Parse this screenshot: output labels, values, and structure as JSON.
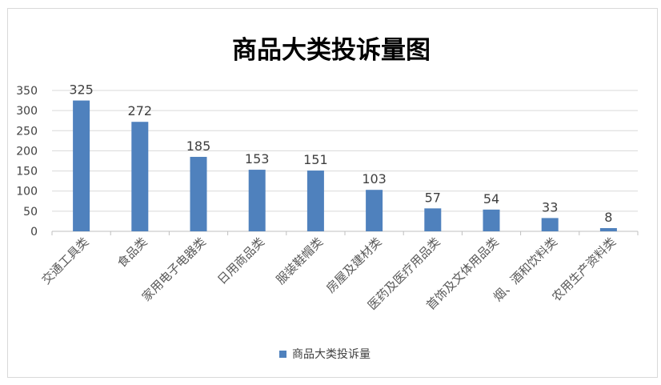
{
  "chart_data": {
    "type": "bar",
    "title": "商品大类投诉量图",
    "categories": [
      "交通工具类",
      "食品类",
      "家用电子电器类",
      "日用商品类",
      "服装鞋帽类",
      "房屋及建材类",
      "医药及医疗用品类",
      "首饰及文体用品类",
      "烟、酒和饮料类",
      "农用生产资料类"
    ],
    "series": [
      {
        "name": "商品大类投诉量",
        "values": [
          325,
          272,
          185,
          153,
          151,
          103,
          57,
          54,
          33,
          8
        ]
      }
    ],
    "ylim": [
      0,
      350
    ],
    "yticks": [
      0,
      50,
      100,
      150,
      200,
      250,
      300,
      350
    ],
    "grid": true,
    "legend_position": "bottom",
    "bar_color": "#4f81bd"
  }
}
